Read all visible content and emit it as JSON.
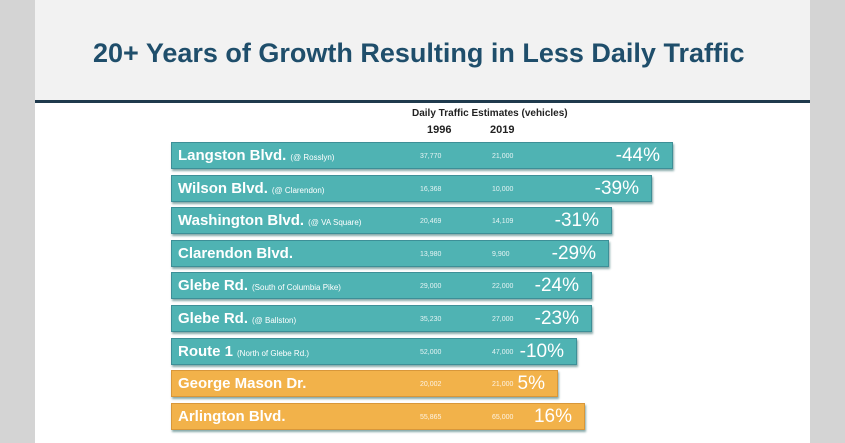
{
  "title": "20+ Years of Growth Resulting in Less Daily Traffic",
  "header": {
    "caption": "Daily Traffic Estimates (vehicles)",
    "year1": "1996",
    "year2": "2019"
  },
  "colors": {
    "decrease": "#4fb3b3",
    "increase": "#f2b24a"
  },
  "rows": [
    {
      "name": "Langston Blvd.",
      "note": "(@ Rosslyn)",
      "v1996": "37,770",
      "v2019": "21,000",
      "change": "-44%",
      "type": "decrease"
    },
    {
      "name": "Wilson Blvd.",
      "note": "(@ Clarendon)",
      "v1996": "16,368",
      "v2019": "10,000",
      "change": "-39%",
      "type": "decrease"
    },
    {
      "name": "Washington Blvd.",
      "note": "(@ VA Square)",
      "v1996": "20,469",
      "v2019": "14,109",
      "change": "-31%",
      "type": "decrease"
    },
    {
      "name": "Clarendon Blvd.",
      "note": "",
      "v1996": "13,980",
      "v2019": "9,900",
      "change": "-29%",
      "type": "decrease"
    },
    {
      "name": "Glebe Rd.",
      "note": "(South of Columbia Pike)",
      "v1996": "29,000",
      "v2019": "22,000",
      "change": "-24%",
      "type": "decrease"
    },
    {
      "name": "Glebe Rd.",
      "note": "(@ Ballston)",
      "v1996": "35,230",
      "v2019": "27,000",
      "change": "-23%",
      "type": "decrease"
    },
    {
      "name": "Route 1",
      "note": "(North of Glebe Rd.)",
      "v1996": "52,000",
      "v2019": "47,000",
      "change": "-10%",
      "type": "decrease"
    },
    {
      "name": "George Mason Dr.",
      "note": "",
      "v1996": "20,002",
      "v2019": "21,000",
      "change": "5%",
      "type": "increase"
    },
    {
      "name": "Arlington Blvd.",
      "note": "",
      "v1996": "55,865",
      "v2019": "65,000",
      "change": "16%",
      "type": "increase"
    }
  ]
}
